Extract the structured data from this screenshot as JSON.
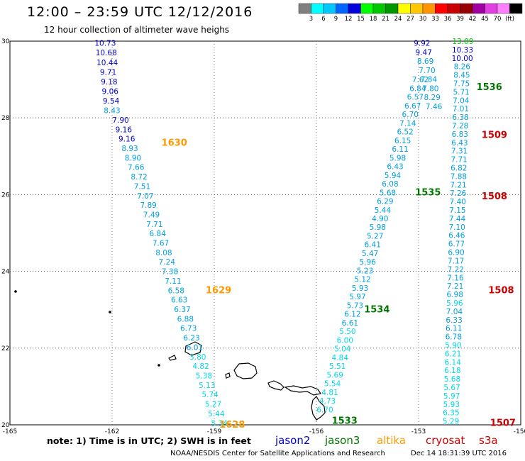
{
  "header": {
    "title": "12:00 – 23:59 UTC 12/12/2016",
    "subtitle": "12 hour collection of altimeter wave heighs"
  },
  "legend": {
    "colors": [
      "#808080",
      "#00ffff",
      "#00c8ff",
      "#0064ff",
      "#0000dc",
      "#00ff00",
      "#00c800",
      "#009600",
      "#ffff00",
      "#ffc800",
      "#ff9600",
      "#ff0000",
      "#c80000",
      "#960000",
      "#a000a0",
      "#e040e0",
      "#ff80ff",
      "#000000"
    ],
    "labels": [
      "3",
      "6",
      "9",
      "12",
      "15",
      "18",
      "21",
      "24",
      "27",
      "30",
      "33",
      "36",
      "39",
      "42",
      "45",
      "70",
      "(ft)"
    ]
  },
  "footer": {
    "note": "note: 1) Time is in UTC; 2) SWH is in feet",
    "satellites": [
      {
        "name": "jason2",
        "color": "#0000cc"
      },
      {
        "name": "jason3",
        "color": "#007700"
      },
      {
        "name": "altika",
        "color": "#ff9900"
      },
      {
        "name": "cryosat",
        "color": "#cc0000"
      },
      {
        "name": "s3a",
        "color": "#cc0000"
      }
    ],
    "credit": "NOAA/NESDIS Center for Satellite Applications and Research",
    "timestamp": "Dec 14 18:31:39 UTC 2016"
  },
  "chart_data": {
    "type": "scatter",
    "xlim": [
      -165,
      -150
    ],
    "ylim": [
      20,
      30
    ],
    "x_ticks": [
      "-165",
      "-162",
      "-159",
      "-156",
      "-153",
      "-150"
    ],
    "y_ticks": [
      "20",
      "22",
      "24",
      "26",
      "28",
      "30"
    ],
    "grid": true,
    "tracks": [
      {
        "satellite": "jason2",
        "start": [
          -162.2,
          29.95
        ],
        "end": [
          -162.0,
          28.2
        ],
        "values": [
          {
            "v": "10.73",
            "c": "#0000cc"
          },
          {
            "v": "10.68",
            "c": "#0000cc"
          },
          {
            "v": "10.44",
            "c": "#0000cc"
          },
          {
            "v": "9.71",
            "c": "#0000cc"
          },
          {
            "v": "9.18",
            "c": "#0000cc"
          },
          {
            "v": "9.06",
            "c": "#0000cc"
          },
          {
            "v": "9.54",
            "c": "#0000cc"
          },
          {
            "v": "8.43",
            "c": "#00a0e0"
          }
        ]
      },
      {
        "satellite": "altika",
        "start": [
          -161.75,
          27.95
        ],
        "end": [
          -158.85,
          20.05
        ],
        "values": [
          {
            "v": "7.90",
            "c": "#0000cc"
          },
          {
            "v": "9.16",
            "c": "#0000cc"
          },
          {
            "v": "9.16",
            "c": "#0000cc"
          },
          {
            "v": "8.93",
            "c": "#00a0e0"
          },
          {
            "v": "8.90",
            "c": "#00a0e0"
          },
          {
            "v": "7.66",
            "c": "#00a0e0"
          },
          {
            "v": "8.72",
            "c": "#00a0e0"
          },
          {
            "v": "7.51",
            "c": "#00a0e0"
          },
          {
            "v": "7.07",
            "c": "#00a0e0"
          },
          {
            "v": "7.89",
            "c": "#00a0e0"
          },
          {
            "v": "7.49",
            "c": "#00a0e0"
          },
          {
            "v": "7.71",
            "c": "#00a0e0"
          },
          {
            "v": "6.84",
            "c": "#00a0e0"
          },
          {
            "v": "7.67",
            "c": "#00a0e0"
          },
          {
            "v": "8.08",
            "c": "#00a0e0"
          },
          {
            "v": "7.24",
            "c": "#00a0e0"
          },
          {
            "v": "7.38",
            "c": "#00a0e0"
          },
          {
            "v": "7.11",
            "c": "#00a0e0"
          },
          {
            "v": "6.58",
            "c": "#00a0e0"
          },
          {
            "v": "6.63",
            "c": "#00a0e0"
          },
          {
            "v": "6.37",
            "c": "#00a0e0"
          },
          {
            "v": "6.88",
            "c": "#00a0e0"
          },
          {
            "v": "6.73",
            "c": "#00a0e0"
          },
          {
            "v": "6.23",
            "c": "#00a0e0"
          },
          {
            "v": "6.01",
            "c": "#00a0e0"
          },
          {
            "v": "3.80",
            "c": "#00d8e8"
          },
          {
            "v": "4.82",
            "c": "#00d8e8"
          },
          {
            "v": "5.38",
            "c": "#00d8e8"
          },
          {
            "v": "5.13",
            "c": "#00d8e8"
          },
          {
            "v": "5.74",
            "c": "#00d8e8"
          },
          {
            "v": "5.27",
            "c": "#00d8e8"
          },
          {
            "v": "5.44",
            "c": "#00d8e8"
          },
          {
            "v": "5.34",
            "c": "#00d8e8"
          }
        ]
      },
      {
        "satellite": "jason3",
        "start": [
          -152.95,
          29.0
        ],
        "end": [
          -155.75,
          20.4
        ],
        "values": [
          {
            "v": "7.62",
            "c": "#00a0e0"
          },
          {
            "v": "6.84",
            "c": "#00a0e0"
          },
          {
            "v": "6.57",
            "c": "#00a0e0"
          },
          {
            "v": "6.67",
            "c": "#00a0e0"
          },
          {
            "v": "6.70",
            "c": "#00a0e0"
          },
          {
            "v": "7.14",
            "c": "#00a0e0"
          },
          {
            "v": "6.52",
            "c": "#00a0e0"
          },
          {
            "v": "6.15",
            "c": "#00a0e0"
          },
          {
            "v": "6.11",
            "c": "#00a0e0"
          },
          {
            "v": "5.98",
            "c": "#00a0e0"
          },
          {
            "v": "6.43",
            "c": "#00a0e0"
          },
          {
            "v": "5.94",
            "c": "#00a0e0"
          },
          {
            "v": "6.08",
            "c": "#00a0e0"
          },
          {
            "v": "5.68",
            "c": "#00a0e0"
          },
          {
            "v": "6.29",
            "c": "#00a0e0"
          },
          {
            "v": "5.44",
            "c": "#00a0e0"
          },
          {
            "v": "4.90",
            "c": "#00a0e0"
          },
          {
            "v": "5.98",
            "c": "#00a0e0"
          },
          {
            "v": "5.27",
            "c": "#00a0e0"
          },
          {
            "v": "6.41",
            "c": "#00a0e0"
          },
          {
            "v": "5.47",
            "c": "#00a0e0"
          },
          {
            "v": "5.96",
            "c": "#00a0e0"
          },
          {
            "v": "5.23",
            "c": "#00a0e0"
          },
          {
            "v": "5.12",
            "c": "#00a0e0"
          },
          {
            "v": "5.93",
            "c": "#00a0e0"
          },
          {
            "v": "5.97",
            "c": "#00a0e0"
          },
          {
            "v": "5.73",
            "c": "#00a0e0"
          },
          {
            "v": "6.12",
            "c": "#00a0e0"
          },
          {
            "v": "6.61",
            "c": "#00a0e0"
          },
          {
            "v": "5.50",
            "c": "#00d8e8"
          },
          {
            "v": "6.00",
            "c": "#00d8e8"
          },
          {
            "v": "5.04",
            "c": "#00d8e8"
          },
          {
            "v": "4.84",
            "c": "#00d8e8"
          },
          {
            "v": "5.51",
            "c": "#00d8e8"
          },
          {
            "v": "5.69",
            "c": "#00d8e8"
          },
          {
            "v": "5.54",
            "c": "#00d8e8"
          },
          {
            "v": "4.81",
            "c": "#00d8e8"
          },
          {
            "v": "4.73",
            "c": "#00d8e8"
          },
          {
            "v": "6.70",
            "c": "#00d8e8"
          }
        ]
      },
      {
        "satellite": "jason2",
        "start": [
          -152.9,
          29.95
        ],
        "end": [
          -152.55,
          28.3
        ],
        "values": [
          {
            "v": "9.92",
            "c": "#0000cc"
          },
          {
            "v": "9.47",
            "c": "#0000cc"
          },
          {
            "v": "8.69",
            "c": "#00a0e0"
          },
          {
            "v": "7.70",
            "c": "#00a0e0"
          },
          {
            "v": "7.84",
            "c": "#00a0e0"
          },
          {
            "v": "7.80",
            "c": "#00a0e0"
          },
          {
            "v": "8.29",
            "c": "#00a0e0"
          },
          {
            "v": "7.46",
            "c": "#00a0e0"
          }
        ]
      },
      {
        "satellite": "cryosat",
        "start": [
          -151.7,
          30.0
        ],
        "end": [
          -152.05,
          20.1
        ],
        "values": [
          {
            "v": "13.09",
            "c": "#00c800"
          },
          {
            "v": "10.33",
            "c": "#0000cc"
          },
          {
            "v": "10.00",
            "c": "#0000cc"
          },
          {
            "v": "8.26",
            "c": "#00a0e0"
          },
          {
            "v": "8.45",
            "c": "#00a0e0"
          },
          {
            "v": "7.75",
            "c": "#00a0e0"
          },
          {
            "v": "5.71",
            "c": "#00a0e0"
          },
          {
            "v": "7.04",
            "c": "#00a0e0"
          },
          {
            "v": "7.01",
            "c": "#00a0e0"
          },
          {
            "v": "6.38",
            "c": "#00a0e0"
          },
          {
            "v": "7.28",
            "c": "#00a0e0"
          },
          {
            "v": "6.83",
            "c": "#00a0e0"
          },
          {
            "v": "6.43",
            "c": "#00a0e0"
          },
          {
            "v": "7.31",
            "c": "#00a0e0"
          },
          {
            "v": "7.71",
            "c": "#00a0e0"
          },
          {
            "v": "6.82",
            "c": "#00a0e0"
          },
          {
            "v": "7.88",
            "c": "#00a0e0"
          },
          {
            "v": "7.21",
            "c": "#00a0e0"
          },
          {
            "v": "7.26",
            "c": "#00a0e0"
          },
          {
            "v": "7.40",
            "c": "#00a0e0"
          },
          {
            "v": "7.15",
            "c": "#00a0e0"
          },
          {
            "v": "7.44",
            "c": "#00a0e0"
          },
          {
            "v": "7.10",
            "c": "#00a0e0"
          },
          {
            "v": "6.46",
            "c": "#00a0e0"
          },
          {
            "v": "6.77",
            "c": "#00a0e0"
          },
          {
            "v": "6.90",
            "c": "#00a0e0"
          },
          {
            "v": "7.17",
            "c": "#00a0e0"
          },
          {
            "v": "7.22",
            "c": "#00a0e0"
          },
          {
            "v": "7.16",
            "c": "#00a0e0"
          },
          {
            "v": "7.21",
            "c": "#00a0e0"
          },
          {
            "v": "6.98",
            "c": "#00a0e0"
          },
          {
            "v": "5.96",
            "c": "#00d8e8"
          },
          {
            "v": "7.04",
            "c": "#00a0e0"
          },
          {
            "v": "6.33",
            "c": "#00a0e0"
          },
          {
            "v": "6.11",
            "c": "#00a0e0"
          },
          {
            "v": "6.78",
            "c": "#00a0e0"
          },
          {
            "v": "5.90",
            "c": "#00d8e8"
          },
          {
            "v": "6.21",
            "c": "#00d8e8"
          },
          {
            "v": "6.14",
            "c": "#00d8e8"
          },
          {
            "v": "6.18",
            "c": "#00d8e8"
          },
          {
            "v": "5.68",
            "c": "#00d8e8"
          },
          {
            "v": "5.67",
            "c": "#00d8e8"
          },
          {
            "v": "5.97",
            "c": "#00d8e8"
          },
          {
            "v": "5.93",
            "c": "#00d8e8"
          },
          {
            "v": "6.35",
            "c": "#00d8e8"
          },
          {
            "v": "5.29",
            "c": "#00d8e8"
          }
        ]
      }
    ],
    "time_labels": [
      {
        "text": "1630",
        "x": -160.55,
        "y": 27.35,
        "c": "#ff9900"
      },
      {
        "text": "1629",
        "x": -159.25,
        "y": 23.5,
        "c": "#ff9900"
      },
      {
        "text": "1628",
        "x": -158.85,
        "y": 20.0,
        "c": "#ff9900"
      },
      {
        "text": "1536",
        "x": -151.3,
        "y": 28.8,
        "c": "#007700"
      },
      {
        "text": "1509",
        "x": -151.15,
        "y": 27.55,
        "c": "#cc0000"
      },
      {
        "text": "1535",
        "x": -153.1,
        "y": 26.05,
        "c": "#007700"
      },
      {
        "text": "1508",
        "x": -151.15,
        "y": 25.95,
        "c": "#cc0000"
      },
      {
        "text": "1508",
        "x": -150.95,
        "y": 23.5,
        "c": "#cc0000"
      },
      {
        "text": "1534",
        "x": -154.6,
        "y": 23.0,
        "c": "#007700"
      },
      {
        "text": "1533",
        "x": -155.55,
        "y": 20.1,
        "c": "#007700"
      },
      {
        "text": "1507",
        "x": -150.9,
        "y": 20.05,
        "c": "#cc0000"
      }
    ]
  }
}
